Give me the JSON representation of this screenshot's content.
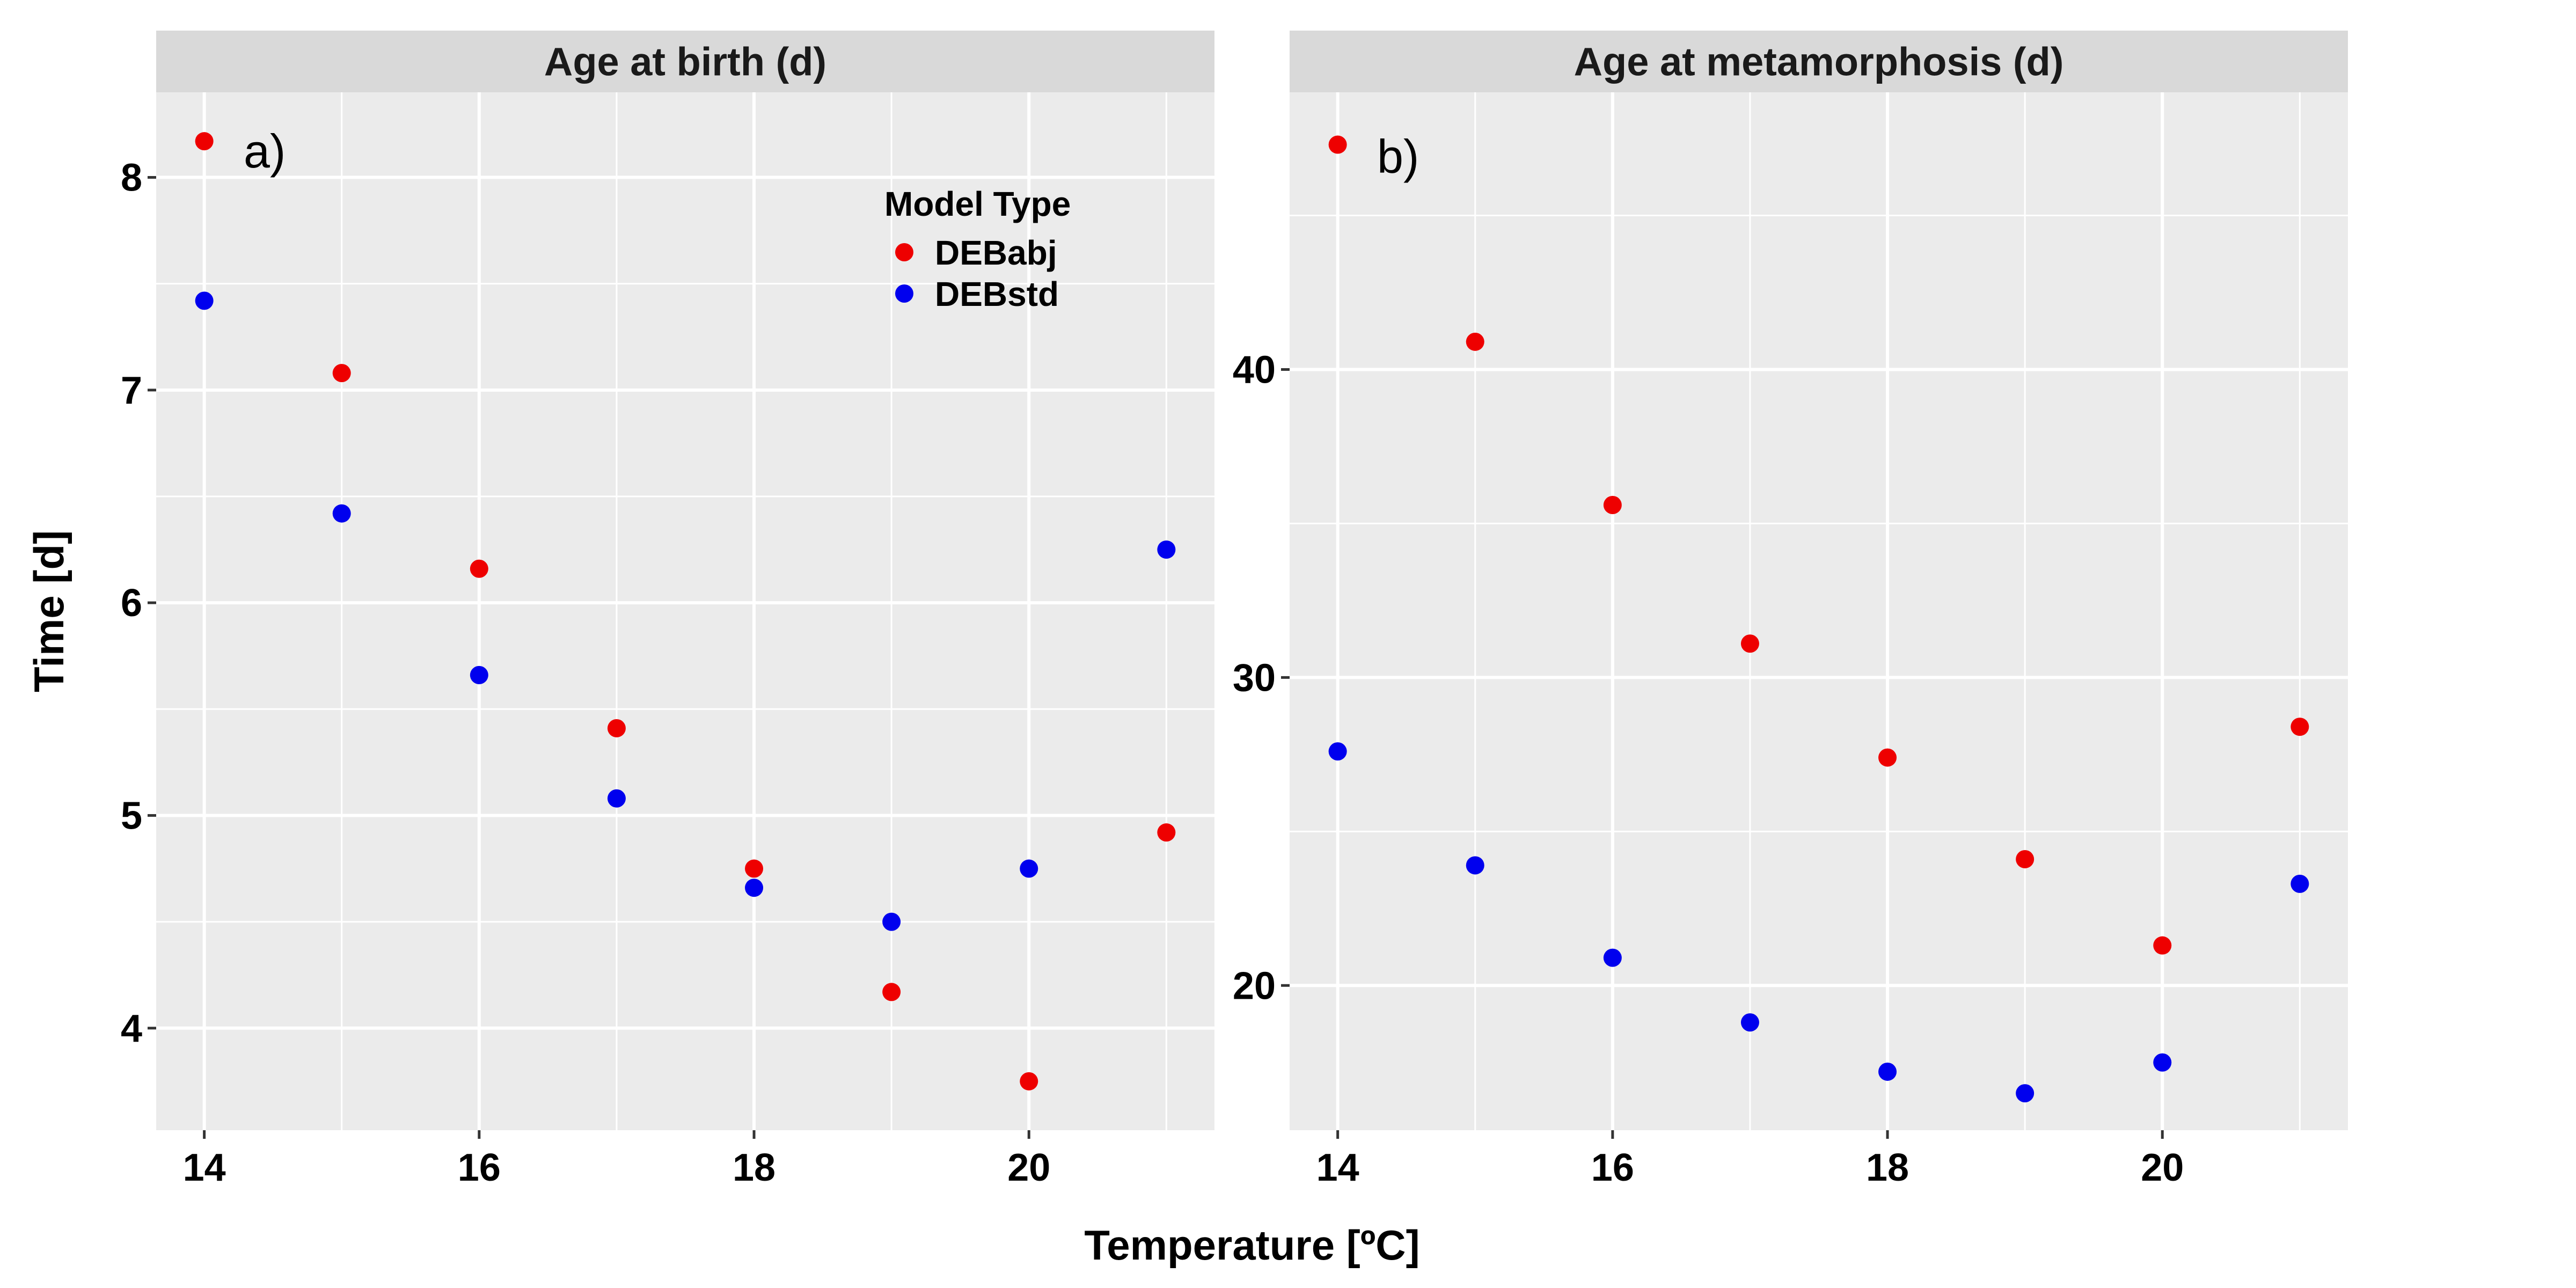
{
  "figure": {
    "x_axis_title": "Temperature [ºC]",
    "y_axis_title": "Time [d]"
  },
  "legend": {
    "title": "Model Type",
    "placement": "inside panel a, top-right",
    "entries": [
      {
        "label": "DEBabj",
        "color": "#ee0000"
      },
      {
        "label": "DEBstd",
        "color": "#0000ee"
      }
    ]
  },
  "colors": {
    "panel_background": "#ebebeb",
    "strip_background": "#d9d9d9",
    "grid": "#ffffff",
    "DEBabj": "#ee0000",
    "DEBstd": "#0000ee"
  },
  "chart_data": [
    {
      "type": "scatter",
      "panel_tag": "a)",
      "title": "Age at birth (d)",
      "grid": true,
      "x_ticks": [
        14,
        16,
        18,
        20
      ],
      "y_ticks": [
        4,
        5,
        6,
        7,
        8
      ],
      "xlim": [
        13.65,
        21.35
      ],
      "ylim": [
        3.52,
        8.4
      ],
      "series": [
        {
          "name": "DEBabj",
          "color": "#ee0000",
          "x": [
            14,
            15,
            16,
            17,
            18,
            19,
            20,
            21
          ],
          "y": [
            8.17,
            7.08,
            6.16,
            5.41,
            4.75,
            4.17,
            3.75,
            4.92
          ]
        },
        {
          "name": "DEBstd",
          "color": "#0000ee",
          "x": [
            14,
            15,
            16,
            17,
            18,
            19,
            20,
            21
          ],
          "y": [
            7.42,
            6.42,
            5.66,
            5.08,
            4.66,
            4.5,
            4.75,
            6.25
          ]
        }
      ]
    },
    {
      "type": "scatter",
      "panel_tag": "b)",
      "title": "Age at metamorphosis (d)",
      "grid": true,
      "x_ticks": [
        14,
        16,
        18,
        20
      ],
      "y_ticks": [
        20,
        30,
        40
      ],
      "xlim": [
        13.65,
        21.35
      ],
      "ylim": [
        15.3,
        49.0
      ],
      "series": [
        {
          "name": "DEBabj",
          "color": "#ee0000",
          "x": [
            14,
            15,
            16,
            17,
            18,
            19,
            20,
            21
          ],
          "y": [
            47.3,
            40.9,
            35.6,
            31.1,
            27.4,
            24.1,
            21.3,
            28.4
          ]
        },
        {
          "name": "DEBstd",
          "color": "#0000ee",
          "x": [
            14,
            15,
            16,
            17,
            18,
            19,
            20,
            21
          ],
          "y": [
            27.6,
            23.9,
            20.9,
            18.8,
            17.2,
            16.5,
            17.5,
            23.3
          ]
        }
      ]
    }
  ]
}
